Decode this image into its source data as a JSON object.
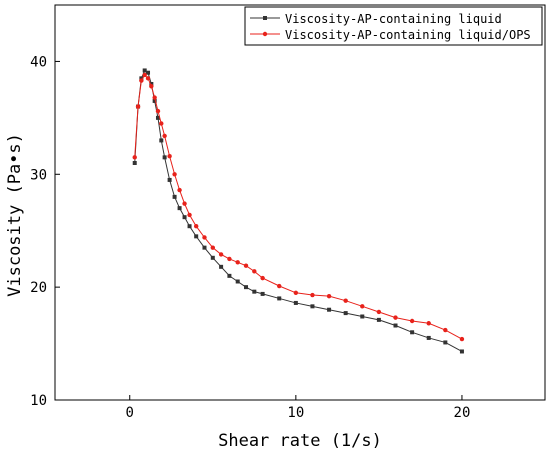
{
  "chart_data": {
    "type": "line",
    "title": "",
    "xlabel": "Shear rate (1/s)",
    "ylabel": "Viscosity (Pa•s)",
    "xlim": [
      -4.5,
      25
    ],
    "ylim": [
      10,
      45
    ],
    "xticks": [
      0,
      10,
      20
    ],
    "yticks": [
      10,
      20,
      30,
      40
    ],
    "grid": false,
    "legend_position": "top-right",
    "series": [
      {
        "name": "Viscosity-AP-containing liquid",
        "color": "#333333",
        "marker": "square",
        "x": [
          0.3,
          0.5,
          0.7,
          0.9,
          1.1,
          1.3,
          1.5,
          1.7,
          1.9,
          2.1,
          2.4,
          2.7,
          3.0,
          3.3,
          3.6,
          4.0,
          4.5,
          5.0,
          5.5,
          6.0,
          6.5,
          7.0,
          7.5,
          8.0,
          9.0,
          10.0,
          11.0,
          12.0,
          13.0,
          14.0,
          15.0,
          16.0,
          17.0,
          18.0,
          19.0,
          20.0
        ],
        "y": [
          31.0,
          36.0,
          38.5,
          39.2,
          39.0,
          38.0,
          36.5,
          35.0,
          33.0,
          31.5,
          29.5,
          28.0,
          27.0,
          26.2,
          25.4,
          24.5,
          23.5,
          22.6,
          21.8,
          21.0,
          20.5,
          20.0,
          19.6,
          19.4,
          19.0,
          18.6,
          18.3,
          18.0,
          17.7,
          17.4,
          17.1,
          16.6,
          16.0,
          15.5,
          15.1,
          14.3
        ]
      },
      {
        "name": "Viscosity-AP-containing liquid/OPS",
        "color": "#e8221b",
        "marker": "circle",
        "x": [
          0.3,
          0.5,
          0.7,
          0.9,
          1.1,
          1.3,
          1.5,
          1.7,
          1.9,
          2.1,
          2.4,
          2.7,
          3.0,
          3.3,
          3.6,
          4.0,
          4.5,
          5.0,
          5.5,
          6.0,
          6.5,
          7.0,
          7.5,
          8.0,
          9.0,
          10.0,
          11.0,
          12.0,
          13.0,
          14.0,
          15.0,
          16.0,
          17.0,
          18.0,
          19.0,
          20.0
        ],
        "y": [
          31.5,
          36.0,
          38.3,
          38.8,
          38.5,
          37.8,
          36.8,
          35.6,
          34.5,
          33.4,
          31.6,
          30.0,
          28.6,
          27.4,
          26.4,
          25.4,
          24.4,
          23.5,
          22.9,
          22.5,
          22.2,
          21.9,
          21.4,
          20.8,
          20.1,
          19.5,
          19.3,
          19.2,
          18.8,
          18.3,
          17.8,
          17.3,
          17.0,
          16.8,
          16.2,
          15.4
        ]
      }
    ]
  }
}
